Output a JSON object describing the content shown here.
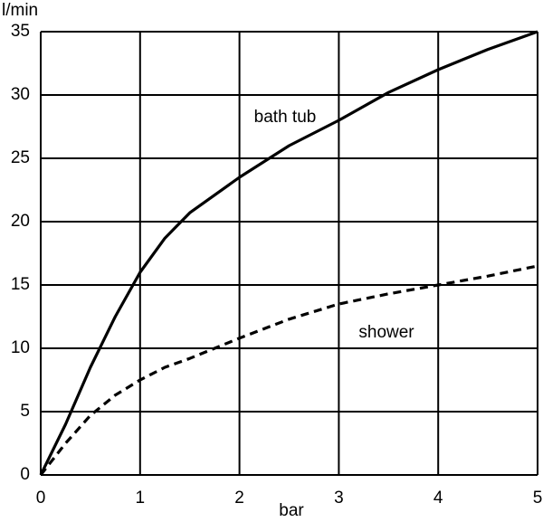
{
  "chart_data": {
    "type": "line",
    "x_label": "bar",
    "y_label": "l/min",
    "x": [
      0,
      0.25,
      0.5,
      0.75,
      1,
      1.25,
      1.5,
      2,
      2.5,
      3,
      3.5,
      4,
      4.5,
      5
    ],
    "series": [
      {
        "name": "bath tub",
        "color": "#000000",
        "dash": false,
        "values": [
          0,
          4,
          8.5,
          12.5,
          16,
          18.7,
          20.7,
          23.5,
          26,
          28,
          30.2,
          32,
          33.6,
          35
        ]
      },
      {
        "name": "shower",
        "color": "#000000",
        "dash": true,
        "values": [
          0,
          2.5,
          4.7,
          6.3,
          7.5,
          8.5,
          9.2,
          10.8,
          12.3,
          13.5,
          14.3,
          15,
          15.7,
          16.5
        ]
      }
    ],
    "xlim": [
      0,
      5
    ],
    "xticks": [
      0,
      1,
      2,
      3,
      4,
      5
    ],
    "ylim": [
      0,
      35
    ],
    "yticks": [
      0,
      5,
      10,
      15,
      20,
      25,
      30,
      35
    ],
    "grid": true
  }
}
